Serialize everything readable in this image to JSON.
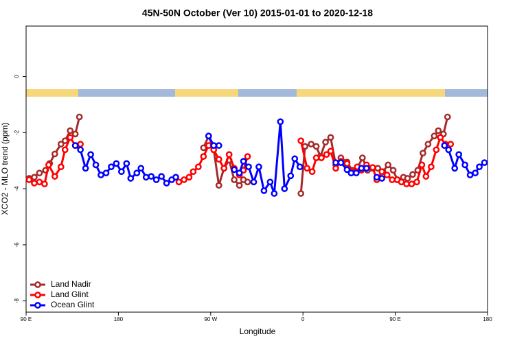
{
  "chart_data": {
    "type": "line",
    "title": "45N-50N October (Ver 10)   2015-01-01 to 2020-12-18",
    "x_label": "Longitude",
    "y_label": "XCO2 - MLO trend (ppm)",
    "xlim": [
      90,
      540
    ],
    "xticks": [
      {
        "value": 90,
        "label": "90 E"
      },
      180,
      {
        "value": 270,
        "label": "90 W"
      },
      {
        "value": 360,
        "label": "0"
      },
      {
        "value": 450,
        "label": "90 E"
      },
      {
        "value": 540,
        "label": "180"
      }
    ],
    "ylim": [
      -8.4,
      1.8
    ],
    "yticks": [
      0,
      -2,
      -4,
      -6,
      -8
    ],
    "legend": "bottomleft",
    "series": [
      {
        "name": "Land Nadir",
        "color": "#a52a2a",
        "x": [
          93,
          98,
          103,
          109,
          113,
          118,
          124,
          128,
          133,
          138,
          142,
          null,
          263,
          268,
          273,
          278,
          283,
          288,
          293,
          298,
          302,
          306,
          null,
          358,
          362,
          368,
          373,
          377,
          382,
          387,
          392,
          397,
          403,
          408,
          413,
          418,
          423,
          428,
          433,
          438,
          443,
          448,
          452,
          458,
          462,
          467,
          472,
          477,
          482,
          488,
          492,
          497,
          501
        ],
        "values": [
          -3.63,
          -3.59,
          -3.44,
          -3.34,
          -3.1,
          -2.76,
          -2.41,
          -2.29,
          -1.93,
          -2.05,
          -1.44,
          null,
          -2.54,
          -2.12,
          -2.61,
          -3.88,
          -3.27,
          -2.98,
          -3.68,
          -3.88,
          -3.68,
          -3.76,
          null,
          -4.17,
          -2.49,
          -2.41,
          -2.49,
          -2.85,
          -2.34,
          -2.17,
          -3.15,
          -2.9,
          -3.05,
          -3.34,
          -3.27,
          -2.9,
          -3.34,
          -3.27,
          -3.27,
          -3.39,
          -3.15,
          -3.34,
          -3.68,
          -3.59,
          -3.63,
          -3.49,
          -3.34,
          -2.73,
          -2.41,
          -2.12,
          -1.93,
          -2.05,
          -1.44
        ]
      },
      {
        "name": "Land Glint",
        "color": "#ff0000",
        "x": [
          93,
          98,
          103,
          108,
          112,
          118,
          124,
          128,
          133,
          138,
          143,
          null,
          239,
          244,
          249,
          253,
          258,
          263,
          268,
          273,
          278,
          283,
          288,
          293,
          298,
          302,
          306,
          null,
          358,
          364,
          369,
          373,
          378,
          383,
          387,
          392,
          397,
          403,
          407,
          413,
          417,
          422,
          428,
          432,
          437,
          442,
          447,
          452,
          456,
          461,
          466,
          471,
          476,
          480,
          485,
          490,
          494,
          499,
          504
        ],
        "values": [
          -3.68,
          -3.8,
          -3.76,
          -3.83,
          -3.15,
          -3.56,
          -3.22,
          -2.61,
          -2.17,
          -2.46,
          -2.41,
          null,
          -3.76,
          -3.68,
          -3.59,
          -3.39,
          -3.22,
          -2.85,
          -2.46,
          -2.61,
          -2.95,
          -3.27,
          -2.78,
          -3.27,
          -3.51,
          -3.34,
          -2.85,
          null,
          -2.29,
          -3.27,
          -3.39,
          -2.9,
          -2.9,
          -2.78,
          -2.66,
          -3.27,
          -3.02,
          -3.1,
          -3.39,
          -3.22,
          -3.34,
          -3.15,
          -3.24,
          -3.68,
          -3.39,
          -3.51,
          -3.68,
          -3.68,
          -3.76,
          -3.83,
          -3.83,
          -3.76,
          -3.15,
          -3.56,
          -3.22,
          -2.61,
          -2.17,
          -2.41,
          -2.41
        ]
      },
      {
        "name": "Ocean Glint",
        "color": "#0000ff",
        "x": [
          138,
          143,
          148,
          153,
          158,
          163,
          168,
          173,
          178,
          183,
          188,
          192,
          198,
          202,
          207,
          212,
          217,
          222,
          227,
          232,
          236,
          null,
          268,
          273,
          278,
          null,
          293,
          298,
          302,
          307,
          312,
          317,
          322,
          328,
          332,
          338,
          342,
          348,
          352,
          357,
          null,
          392,
          397,
          403,
          407,
          412,
          417,
          422,
          null,
          432,
          437,
          null,
          498,
          502,
          508,
          512,
          518,
          523,
          528,
          532,
          537
        ],
        "values": [
          -2.46,
          -2.61,
          -3.27,
          -2.78,
          -3.15,
          -3.51,
          -3.44,
          -3.22,
          -3.1,
          -3.39,
          -3.1,
          -3.63,
          -3.44,
          -3.27,
          -3.59,
          -3.56,
          -3.68,
          -3.56,
          -3.8,
          -3.68,
          -3.59,
          null,
          -2.12,
          -2.46,
          -2.46,
          null,
          -3.32,
          -3.44,
          -3.02,
          -3.22,
          -3.76,
          -3.22,
          -4.07,
          -3.76,
          -4.17,
          -1.61,
          -4.0,
          -3.54,
          -2.93,
          -3.22,
          null,
          -3.07,
          -3.07,
          -3.32,
          -3.44,
          -3.44,
          -3.27,
          -3.27,
          null,
          -3.59,
          -3.63,
          null,
          -2.46,
          -2.61,
          -3.27,
          -2.78,
          -3.15,
          -3.51,
          -3.44,
          -3.22,
          -3.07
        ]
      }
    ]
  }
}
